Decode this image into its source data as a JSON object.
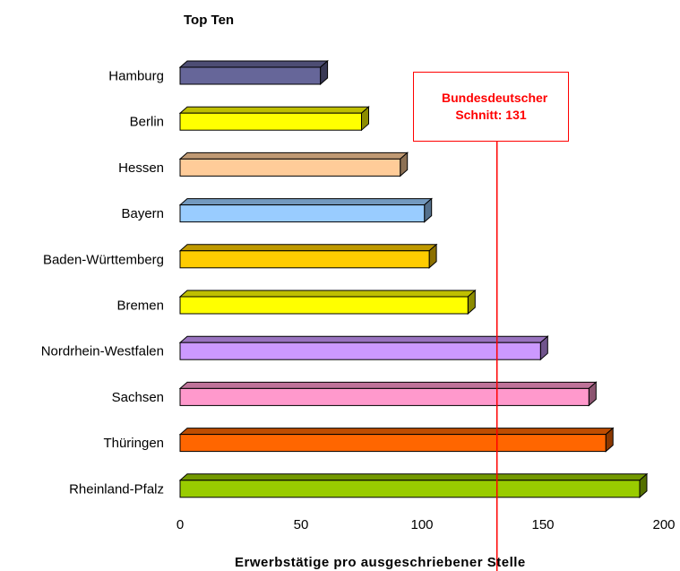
{
  "chart_data": {
    "type": "bar",
    "orientation": "horizontal",
    "title": "Top Ten",
    "xlabel": "Erwerbstätige pro ausgeschriebener Stelle",
    "ylabel": "",
    "categories": [
      "Hamburg",
      "Berlin",
      "Hessen",
      "Bayern",
      "Baden-Württemberg",
      "Bremen",
      "Nordrhein-Westfalen",
      "Sachsen",
      "Thüringen",
      "Rheinland-Pfalz"
    ],
    "values": [
      58,
      75,
      91,
      101,
      103,
      119,
      149,
      169,
      176,
      190
    ],
    "colors": [
      "#666699",
      "#ffff00",
      "#ffcc99",
      "#99ccff",
      "#ffcc00",
      "#ffff00",
      "#cc99ff",
      "#ff99cc",
      "#ff6600",
      "#99cc00"
    ],
    "xlim": [
      0,
      200
    ],
    "xticks": [
      0,
      50,
      100,
      150,
      200
    ],
    "grid": false,
    "legend": "none",
    "reference_line": {
      "value": 131,
      "color": "#ff0000",
      "label": "Bundesdeutscher Schnitt: 131"
    }
  }
}
